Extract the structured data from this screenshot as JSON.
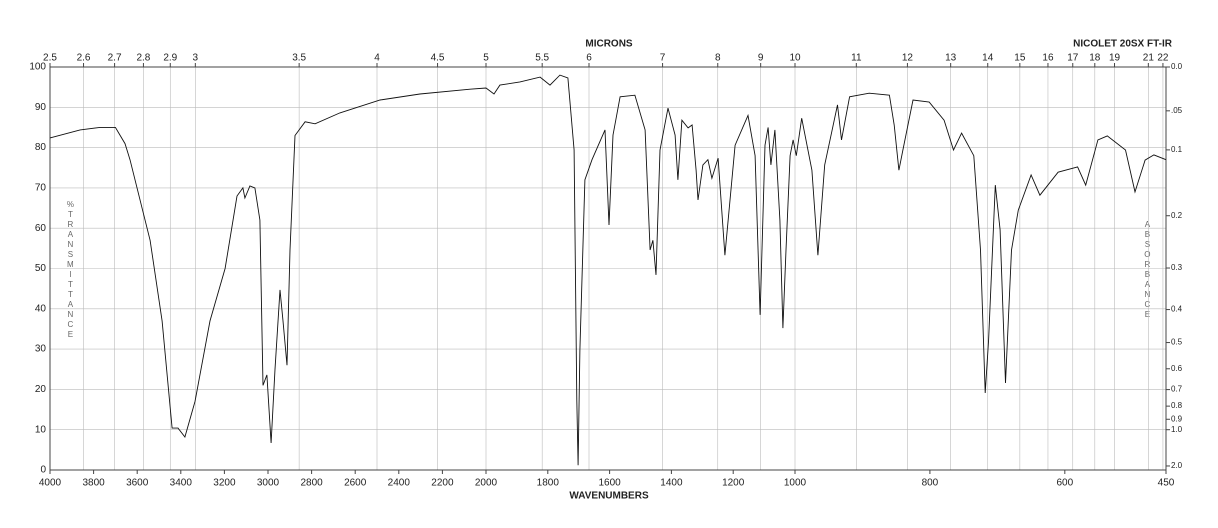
{
  "chart_data": {
    "type": "line",
    "title": "NICOLET 20SX FT-IR",
    "x2label": "MICRONS",
    "xlabel": "WAVENUMBERS",
    "ylabel": "%TRANSMITTANCE",
    "y2label": "ABSORBANCE",
    "color": "#111111",
    "grid": true,
    "xlim": [
      4000,
      450
    ],
    "x_breaks": [
      2000,
      1000
    ],
    "ylim": [
      0,
      100
    ],
    "yticks": [
      0,
      10,
      20,
      30,
      40,
      50,
      60,
      70,
      80,
      90,
      100
    ],
    "xticks": [
      4000,
      3800,
      3600,
      3400,
      3200,
      3000,
      2800,
      2600,
      2400,
      2200,
      2000,
      1800,
      1600,
      1400,
      1200,
      1000,
      800,
      600,
      450
    ],
    "x2ticks": [
      2.5,
      2.6,
      2.7,
      2.8,
      2.9,
      3,
      3.5,
      4,
      4.5,
      5,
      5.5,
      6,
      7,
      8,
      9,
      10,
      11,
      12,
      13,
      14,
      15,
      16,
      17,
      18,
      19,
      21,
      22
    ],
    "y2ticks": [
      {
        "value": 0,
        "label": "0.0"
      },
      {
        "value": 0.05,
        "label": ".05"
      },
      0.1,
      0.2,
      0.3,
      0.4,
      0.5,
      0.6,
      0.7,
      0.8,
      0.9,
      {
        "value": 1,
        "label": "1.0"
      },
      {
        "value": 2,
        "label": "2.0"
      }
    ],
    "x": [
      4000,
      3862,
      3771,
      3700,
      3656,
      3633,
      3541,
      3486,
      3440,
      3413,
      3381,
      3335,
      3266,
      3197,
      3142,
      3115,
      3106,
      3083,
      3060,
      3037,
      3023,
      3005,
      2986,
      2968,
      2945,
      2931,
      2913,
      2899,
      2876,
      2830,
      2784,
      2670,
      2486,
      2303,
      2073,
      2000,
      1974,
      1955,
      1890,
      1825,
      1793,
      1761,
      1735,
      1715,
      1706,
      1702,
      1696,
      1680,
      1657,
      1615,
      1602,
      1589,
      1566,
      1518,
      1485,
      1469,
      1460,
      1450,
      1437,
      1411,
      1388,
      1379,
      1366,
      1346,
      1333,
      1320,
      1314,
      1298,
      1282,
      1269,
      1249,
      1227,
      1194,
      1152,
      1129,
      1113,
      1097,
      1087,
      1078,
      1065,
      1049,
      1039,
      1029,
      1016,
      1006,
      998,
      990,
      975,
      966,
      956,
      937,
      931,
      919,
      890,
      860,
      853,
      846,
      840,
      825,
      801,
      779,
      765,
      753,
      735,
      725,
      718,
      713,
      703,
      696,
      688,
      679,
      669,
      650,
      637,
      610,
      581,
      569,
      551,
      537,
      510,
      496,
      481,
      468,
      450
    ],
    "values": [
      82.4,
      84.4,
      85,
      85,
      81,
      77,
      57,
      37,
      10.4,
      10.4,
      8.2,
      17,
      37,
      50,
      68,
      70,
      67.5,
      70.5,
      70,
      62,
      21,
      23.6,
      6.7,
      25,
      44.7,
      37,
      26,
      54.6,
      83,
      86.4,
      85.9,
      88.6,
      91.8,
      93.3,
      94.5,
      94.8,
      93.3,
      95.5,
      96.3,
      97.5,
      95.5,
      98,
      97.3,
      79.4,
      17.4,
      1.2,
      29.8,
      72,
      77,
      84.4,
      60.8,
      83.1,
      92.6,
      93,
      84.4,
      54.6,
      57,
      48.4,
      79.4,
      89.8,
      83.1,
      72,
      86.8,
      84.9,
      85.6,
      74.4,
      67,
      75.7,
      77,
      72.4,
      77.4,
      53.3,
      80.6,
      88,
      78,
      38.5,
      80.6,
      85,
      75.7,
      84.4,
      62,
      35.2,
      54.6,
      78,
      81.9,
      78,
      87.3,
      74.4,
      53.3,
      75.7,
      90.6,
      81.9,
      92.6,
      93.5,
      93,
      85.6,
      74.4,
      79.4,
      91.8,
      91.3,
      86.8,
      79.4,
      83.6,
      78,
      54.6,
      19.1,
      32.3,
      70.7,
      59.6,
      21.6,
      54.6,
      64.5,
      73.2,
      68.2,
      73.9,
      75.2,
      70.7,
      81.9,
      82.9,
      79.4,
      69,
      76.9,
      78.2,
      77
    ]
  }
}
